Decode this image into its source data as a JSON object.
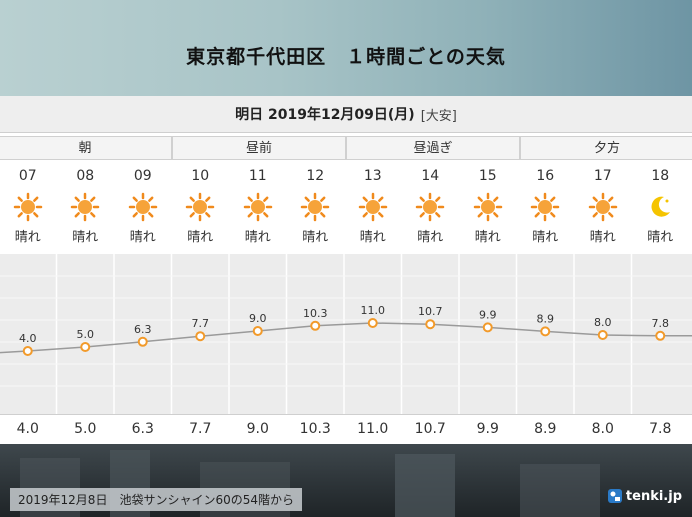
{
  "header": {
    "title": "東京都千代田区　１時間ごとの天気"
  },
  "date_bar": {
    "date": "明日 2019年12月09日(月)",
    "rokuyo": "[大安]"
  },
  "periods": [
    "朝",
    "昼前",
    "昼過ぎ",
    "夕方"
  ],
  "hours": [
    "07",
    "08",
    "09",
    "10",
    "11",
    "12",
    "13",
    "14",
    "15",
    "16",
    "17",
    "18"
  ],
  "weather": [
    "晴れ",
    "晴れ",
    "晴れ",
    "晴れ",
    "晴れ",
    "晴れ",
    "晴れ",
    "晴れ",
    "晴れ",
    "晴れ",
    "晴れ",
    "晴れ"
  ],
  "icons": [
    "sun-icon",
    "sun-icon",
    "sun-icon",
    "sun-icon",
    "sun-icon",
    "sun-icon",
    "sun-icon",
    "sun-icon",
    "sun-icon",
    "sun-icon",
    "sun-icon",
    "moon-icon"
  ],
  "temps_graph_labels": [
    "4.0",
    "5.0",
    "6.3",
    "7.7",
    "9.0",
    "10.3",
    "11.0",
    "10.7",
    "9.9",
    "8.9",
    "8.0",
    "7.8"
  ],
  "temps_bottom": [
    "4.0",
    "5.0",
    "6.3",
    "7.7",
    "9.0",
    "10.3",
    "11.0",
    "10.7",
    "9.9",
    "8.9",
    "8.0",
    "7.8"
  ],
  "chart_data": {
    "type": "line",
    "x": [
      "07",
      "08",
      "09",
      "10",
      "11",
      "12",
      "13",
      "14",
      "15",
      "16",
      "17",
      "18"
    ],
    "values": [
      4.0,
      5.0,
      6.3,
      7.7,
      9.0,
      10.3,
      11.0,
      10.7,
      9.9,
      8.9,
      8.0,
      7.8
    ]
  },
  "footer": {
    "caption": "2019年12月8日　池袋サンシャイン60の54階から",
    "logo": "tenki.jp"
  },
  "colors": {
    "sun": "#f08a1c",
    "sun_core": "#f6a33a",
    "moon": "#f5c400",
    "line": "#9a9a9a",
    "marker": "#f29a2a"
  }
}
